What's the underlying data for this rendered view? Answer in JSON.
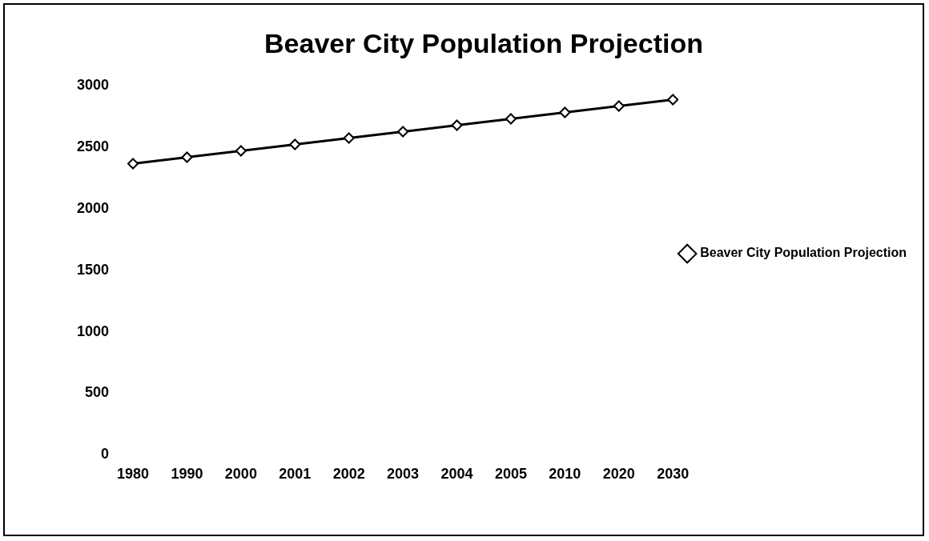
{
  "chart_data": {
    "type": "line",
    "title": "Beaver City Population Projection",
    "categories": [
      "1980",
      "1990",
      "2000",
      "2001",
      "2002",
      "2003",
      "2004",
      "2005",
      "2010",
      "2020",
      "2030"
    ],
    "series": [
      {
        "name": "Beaver City Population Projection",
        "color": "#000000",
        "values": [
          2365,
          2417,
          2469,
          2521,
          2573,
          2625,
          2677,
          2729,
          2781,
          2833,
          2885
        ]
      }
    ],
    "ylim": [
      0,
      3000
    ],
    "yticks": [
      0,
      500,
      1000,
      1500,
      2000,
      2500,
      3000
    ],
    "grid": false,
    "legend": "right",
    "marker": "diamond",
    "line_style": "solid"
  }
}
